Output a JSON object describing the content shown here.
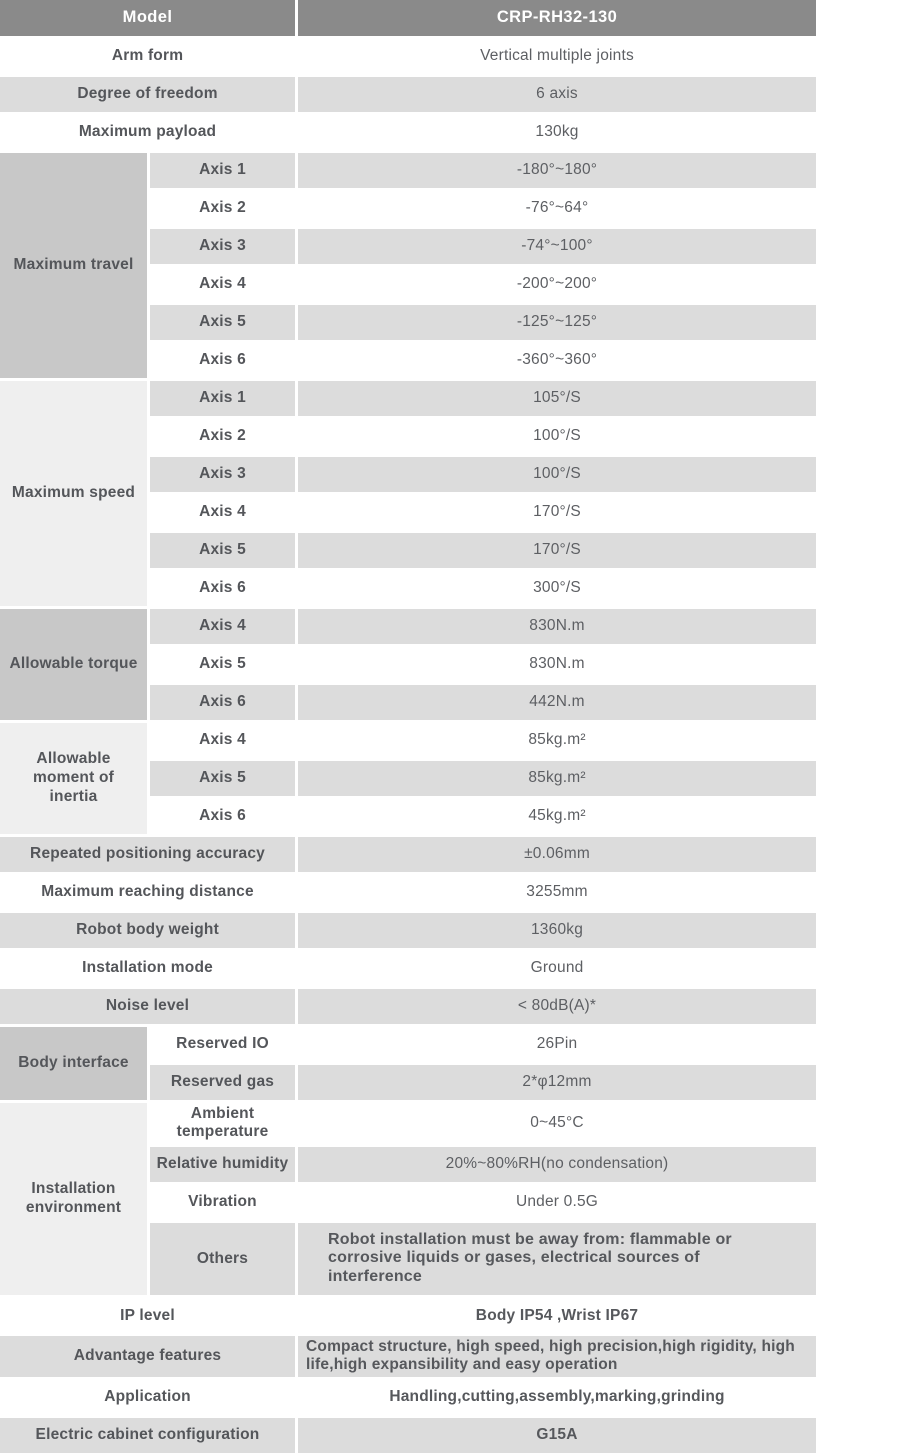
{
  "colors": {
    "header_bg": "#8a8a8a",
    "header_text": "#ffffff",
    "row_shade": "#dcdcdc",
    "row_plain": "#ffffff",
    "group_dark": "#c8c8c8",
    "group_light": "#efefef",
    "text": "#56585c"
  },
  "table": {
    "header": {
      "label": "Model",
      "value": "CRP-RH32-130"
    },
    "sections": [
      {
        "kind": "simple",
        "shade": false,
        "label": "Arm form",
        "value": "Vertical multiple joints"
      },
      {
        "kind": "simple",
        "shade": true,
        "label": "Degree of freedom",
        "value": "6 axis"
      },
      {
        "kind": "simple",
        "shade": false,
        "label": "Maximum payload",
        "value": "130kg"
      },
      {
        "kind": "group",
        "label": "Maximum travel",
        "tone": "dark",
        "rows": [
          {
            "sub": "Axis 1",
            "value": "-180°~180°",
            "shade": true
          },
          {
            "sub": "Axis 2",
            "value": "-76°~64°",
            "shade": false
          },
          {
            "sub": "Axis 3",
            "value": "-74°~100°",
            "shade": true
          },
          {
            "sub": "Axis 4",
            "value": "-200°~200°",
            "shade": false
          },
          {
            "sub": "Axis 5",
            "value": "-125°~125°",
            "shade": true
          },
          {
            "sub": "Axis 6",
            "value": "-360°~360°",
            "shade": false
          }
        ]
      },
      {
        "kind": "group",
        "label": "Maximum speed",
        "tone": "light",
        "rows": [
          {
            "sub": "Axis 1",
            "value": "105°/S",
            "shade": true
          },
          {
            "sub": "Axis 2",
            "value": "100°/S",
            "shade": false
          },
          {
            "sub": "Axis 3",
            "value": "100°/S",
            "shade": true
          },
          {
            "sub": "Axis 4",
            "value": "170°/S",
            "shade": false
          },
          {
            "sub": "Axis 5",
            "value": "170°/S",
            "shade": true
          },
          {
            "sub": "Axis 6",
            "value": "300°/S",
            "shade": false
          }
        ]
      },
      {
        "kind": "group",
        "label": "Allowable torque",
        "tone": "dark",
        "rows": [
          {
            "sub": "Axis 4",
            "value": "830N.m",
            "shade": true
          },
          {
            "sub": "Axis 5",
            "value": "830N.m",
            "shade": false
          },
          {
            "sub": "Axis 6",
            "value": "442N.m",
            "shade": true
          }
        ]
      },
      {
        "kind": "group",
        "label": "Allowable moment of inertia",
        "tone": "light",
        "rows": [
          {
            "sub": "Axis 4",
            "value": "85kg.m²",
            "shade": false
          },
          {
            "sub": "Axis 5",
            "value": "85kg.m²",
            "shade": true
          },
          {
            "sub": "Axis 6",
            "value": "45kg.m²",
            "shade": false
          }
        ]
      },
      {
        "kind": "simple",
        "shade": true,
        "label": "Repeated positioning accuracy",
        "value": "±0.06mm"
      },
      {
        "kind": "simple",
        "shade": false,
        "label": "Maximum reaching distance",
        "value": "3255mm"
      },
      {
        "kind": "simple",
        "shade": true,
        "label": "Robot body weight",
        "value": "1360kg"
      },
      {
        "kind": "simple",
        "shade": false,
        "label": "Installation mode",
        "value": "Ground"
      },
      {
        "kind": "simple",
        "shade": true,
        "label": "Noise level",
        "value": "< 80dB(A)*"
      },
      {
        "kind": "group",
        "label": "Body interface",
        "tone": "dark",
        "rows": [
          {
            "sub": "Reserved IO",
            "value": "26Pin",
            "shade": false
          },
          {
            "sub": "Reserved gas",
            "value": "2*φ12mm",
            "shade": true
          }
        ]
      },
      {
        "kind": "group",
        "label": "Installation environment",
        "tone": "light",
        "rows": [
          {
            "sub": "Ambient temperature",
            "value": "0~45°C",
            "shade": false
          },
          {
            "sub": "Relative humidity",
            "value": "20%~80%RH(no condensation)",
            "shade": true
          },
          {
            "sub": "Vibration",
            "value": "Under 0.5G",
            "shade": false
          },
          {
            "sub": "Others",
            "value": "Robot installation must be away from: flammable or corrosive liquids or gases, electrical sources of interference",
            "shade": true,
            "value_bold": true,
            "value_align": "left-indent"
          }
        ]
      },
      {
        "kind": "simple",
        "shade": false,
        "label": "IP level",
        "value": "Body IP54 ,Wrist IP67",
        "value_bold": true
      },
      {
        "kind": "simple",
        "shade": true,
        "label": "Advantage features",
        "value": "Compact structure, high speed, high precision,high rigidity, high life,high expansibility and easy operation",
        "value_bold": true,
        "value_align": "left"
      },
      {
        "kind": "simple",
        "shade": false,
        "label": "Application",
        "value": "Handling,cutting,assembly,marking,grinding",
        "value_bold": true
      },
      {
        "kind": "simple",
        "shade": true,
        "label": "Electric cabinet configuration",
        "value": "G15A",
        "value_bold": true
      }
    ]
  }
}
